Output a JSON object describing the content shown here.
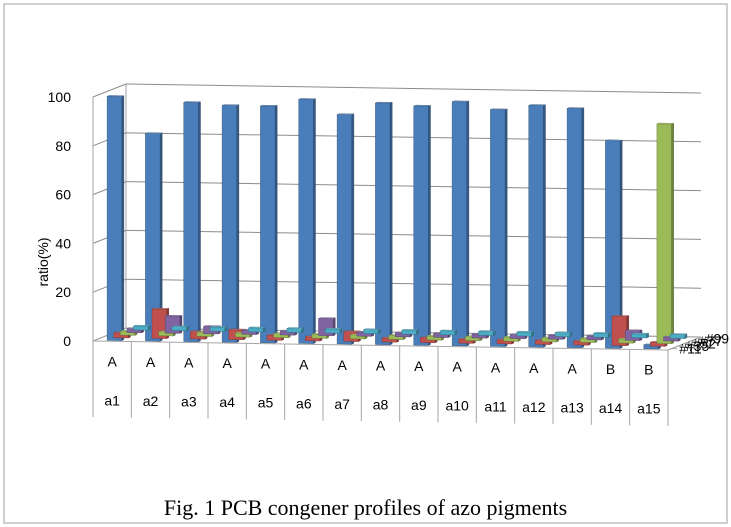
{
  "caption": "Fig. 1 PCB congener profiles of azo pigments",
  "chart_data": {
    "type": "bar",
    "subtype": "3d-column",
    "ylabel": "ratio(%)",
    "ylim": [
      0,
      100
    ],
    "yticks": [
      0,
      20,
      40,
      60,
      80,
      100
    ],
    "grid": true,
    "categories": [
      "a1",
      "a2",
      "a3",
      "a4",
      "a5",
      "a6",
      "a7",
      "a8",
      "a9",
      "a10",
      "a11",
      "a12",
      "a13",
      "a14",
      "a15"
    ],
    "category_groups": [
      "A",
      "A",
      "A",
      "A",
      "A",
      "A",
      "A",
      "A",
      "A",
      "A",
      "A",
      "A",
      "A",
      "B",
      "B"
    ],
    "series": [
      {
        "name": "#11",
        "color": "#4A7EBB",
        "values": [
          100,
          85,
          98,
          97,
          97,
          100,
          94,
          99,
          98,
          100,
          97,
          99,
          98,
          85,
          0
        ]
      },
      {
        "name": "#35",
        "color": "#C0504D",
        "values": [
          2,
          12,
          3,
          4,
          2,
          1,
          4,
          1,
          2,
          0,
          0,
          0,
          1,
          12,
          0
        ]
      },
      {
        "name": "#52",
        "color": "#9BBB59",
        "values": [
          0,
          0,
          0,
          0,
          0,
          0,
          0,
          0,
          0,
          0,
          0,
          0,
          0,
          0,
          90
        ]
      },
      {
        "name": "#77",
        "color": "#8064A2",
        "values": [
          0,
          7,
          3,
          1,
          1,
          7,
          1,
          1,
          1,
          1,
          0,
          0,
          0,
          4,
          0
        ]
      },
      {
        "name": "#99",
        "color": "#4BACC6",
        "values": [
          0,
          0,
          0,
          0,
          0,
          0,
          0,
          0,
          0,
          0,
          0,
          0,
          0,
          0,
          0
        ]
      }
    ],
    "legend": "depth-axis"
  }
}
